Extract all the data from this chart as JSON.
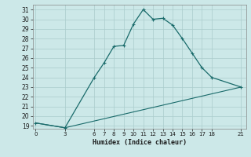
{
  "title": "",
  "xlabel": "Humidex (Indice chaleur)",
  "bg_color": "#cce8e8",
  "grid_color": "#aacccc",
  "line_color": "#1a6b6b",
  "curve1_x": [
    0,
    3,
    6,
    7,
    8,
    9,
    10,
    11,
    12,
    13,
    14,
    15,
    16,
    17,
    18,
    21
  ],
  "curve1_y": [
    19.3,
    18.8,
    24.0,
    25.5,
    27.2,
    27.3,
    29.5,
    31.0,
    30.0,
    30.1,
    29.4,
    28.0,
    26.5,
    25.0,
    24.0,
    23.0
  ],
  "curve2_x": [
    0,
    3,
    21
  ],
  "curve2_y": [
    19.3,
    18.8,
    23.0
  ],
  "xticks": [
    0,
    3,
    6,
    7,
    8,
    9,
    10,
    11,
    12,
    13,
    14,
    15,
    16,
    17,
    18,
    21
  ],
  "yticks": [
    19,
    20,
    21,
    22,
    23,
    24,
    25,
    26,
    27,
    28,
    29,
    30,
    31
  ],
  "xlim": [
    -0.3,
    21.5
  ],
  "ylim": [
    18.7,
    31.5
  ]
}
